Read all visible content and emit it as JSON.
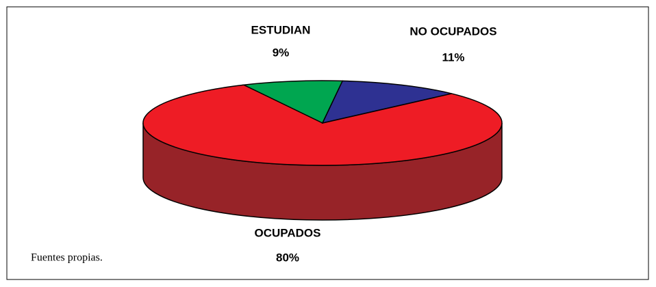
{
  "chart_data": {
    "type": "pie",
    "categories": [
      "OCUPADOS",
      "ESTUDIAN",
      "NO OCUPADOS"
    ],
    "values": [
      80,
      9,
      11
    ],
    "value_labels": [
      "80%",
      "9%",
      "11%"
    ],
    "colors": [
      "#EE1C25",
      "#00A650",
      "#2E3192"
    ],
    "source": "Fuentes propias."
  }
}
